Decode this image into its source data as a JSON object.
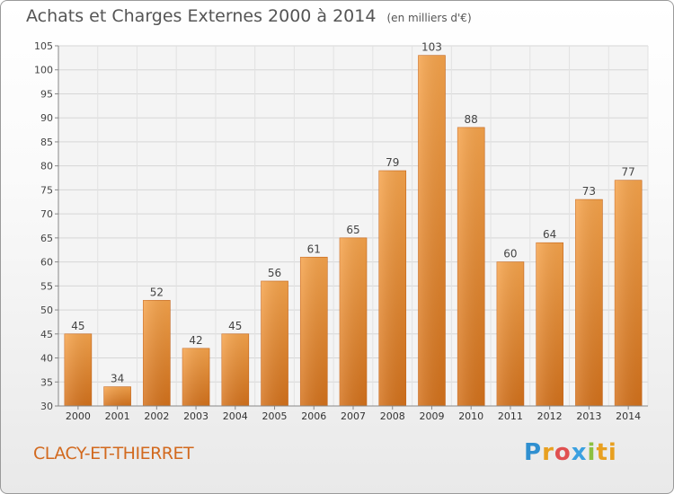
{
  "chart_data": {
    "type": "bar",
    "title": "Achats et Charges Externes 2000 à 2014",
    "subtitle": "(en milliers d'€)",
    "categories": [
      "2000",
      "2001",
      "2002",
      "2003",
      "2004",
      "2005",
      "2006",
      "2007",
      "2008",
      "2009",
      "2010",
      "2011",
      "2012",
      "2013",
      "2014"
    ],
    "values": [
      45,
      34,
      52,
      42,
      45,
      56,
      61,
      65,
      79,
      103,
      88,
      60,
      64,
      73,
      77
    ],
    "ylim": [
      30,
      105
    ],
    "yticks": [
      30,
      35,
      40,
      45,
      50,
      55,
      60,
      65,
      70,
      75,
      80,
      85,
      90,
      95,
      100,
      105
    ],
    "grid": true,
    "xlabel": "",
    "ylabel": "",
    "bar_color": "#f0902e"
  },
  "footer": {
    "location": "CLACY-ET-THIERRET",
    "logo_text": "Proxiti",
    "logo_letters": [
      "P",
      "r",
      "o",
      "x",
      "i",
      "ti"
    ]
  }
}
